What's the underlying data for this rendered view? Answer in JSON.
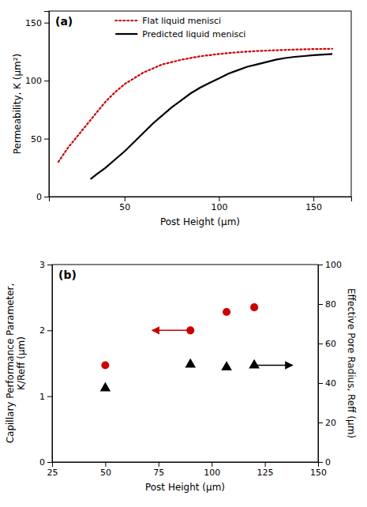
{
  "chart_data": [
    {
      "type": "line",
      "annotations": [
        {
          "text": "(a)"
        }
      ],
      "xlabel": "Post Height (μm)",
      "ylabel": "Permeability, K (μm²)",
      "xlim": [
        10,
        170
      ],
      "ylim": [
        0,
        160
      ],
      "xticks": [
        50,
        100,
        150
      ],
      "yticks": [
        0,
        50,
        100,
        150
      ],
      "legend": "upper left",
      "series": [
        {
          "name": "Flat liquid menisci",
          "color": "#cc0000",
          "line_style": "dotted",
          "x": [
            15,
            20,
            25,
            30,
            35,
            40,
            45,
            50,
            60,
            70,
            80,
            90,
            100,
            110,
            120,
            130,
            140,
            150,
            160
          ],
          "values": [
            30,
            42,
            52,
            62,
            72,
            82,
            90,
            97,
            107,
            114,
            118,
            121,
            123,
            124.5,
            125.5,
            126.2,
            126.8,
            127.2,
            127.5
          ]
        },
        {
          "name": "Predicted liquid menisci",
          "color": "#000000",
          "line_style": "solid",
          "x": [
            32,
            35,
            40,
            45,
            50,
            55,
            60,
            65,
            70,
            75,
            80,
            85,
            90,
            95,
            100,
            105,
            110,
            115,
            120,
            125,
            130,
            135,
            140,
            145,
            150,
            155,
            160
          ],
          "values": [
            15,
            19,
            25,
            32,
            39,
            47,
            55,
            63,
            70,
            77,
            83,
            89,
            94,
            98,
            102,
            106,
            109,
            112,
            114,
            116,
            118,
            119.5,
            120.5,
            121.2,
            122,
            122.5,
            123
          ]
        }
      ]
    },
    {
      "type": "scatter",
      "annotations": [
        {
          "text": "(b)"
        }
      ],
      "xlabel": "Post Height (μm)",
      "ylabel": "Capillary Performance Parameter,\nK/Reff (μm)",
      "y2label": "Effective Pore Radius, Reff (μm)",
      "xlim": [
        25,
        150
      ],
      "ylim": [
        0,
        3
      ],
      "y2lim": [
        0,
        100
      ],
      "xticks": [
        25,
        50,
        75,
        100,
        125,
        150
      ],
      "yticks": [
        0,
        1,
        2,
        3
      ],
      "y2ticks": [
        0,
        20,
        40,
        60,
        80,
        100
      ],
      "series": [
        {
          "color": "#cc0000",
          "marker": "circle",
          "x": [
            50,
            90,
            107,
            120
          ],
          "values": [
            1.47,
            2.0,
            2.28,
            2.35
          ]
        },
        {
          "color": "#000000",
          "marker": "triangle",
          "x": [
            50,
            90,
            107,
            120
          ],
          "values": [
            1.12,
            1.48,
            1.44,
            1.47
          ]
        }
      ],
      "arrows": [
        {
          "x_start": 90,
          "x_end": 72,
          "y": 2.0,
          "color": "#cc0000"
        },
        {
          "x_start": 120,
          "x_end": 138,
          "y": 1.47,
          "color": "#000000"
        }
      ]
    }
  ]
}
